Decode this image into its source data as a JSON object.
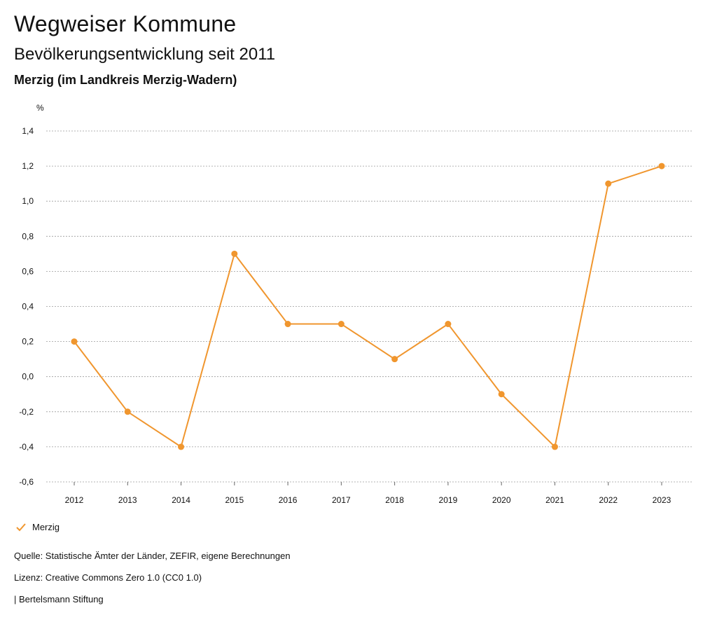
{
  "header": {
    "title": "Wegweiser Kommune",
    "subtitle": "Bevölkerungsentwicklung seit 2011",
    "region": "Merzig (im Landkreis Merzig-Wadern)"
  },
  "colors": {
    "series": "#f0962e",
    "grid": "#9a9a9a",
    "text": "#111111"
  },
  "chart_data": {
    "type": "line",
    "title": "Bevölkerungsentwicklung seit 2011",
    "unit_label": "%",
    "xlabel": "",
    "ylabel": "%",
    "categories": [
      "2012",
      "2013",
      "2014",
      "2015",
      "2016",
      "2017",
      "2018",
      "2019",
      "2020",
      "2021",
      "2022",
      "2023"
    ],
    "series": [
      {
        "name": "Merzig",
        "values": [
          0.2,
          -0.2,
          -0.4,
          0.7,
          0.3,
          0.3,
          0.1,
          0.3,
          -0.1,
          -0.4,
          1.1,
          1.2
        ]
      }
    ],
    "ylim": [
      -0.6,
      1.4
    ],
    "yticks": [
      -0.6,
      -0.4,
      -0.2,
      0.0,
      0.2,
      0.4,
      0.6,
      0.8,
      1.0,
      1.2,
      1.4
    ],
    "ytick_labels": [
      "-0,6",
      "-0,4",
      "-0,2",
      "0,0",
      "0,2",
      "0,4",
      "0,6",
      "0,8",
      "1,0",
      "1,2",
      "1,4"
    ],
    "grid": true,
    "legend_position": "bottom-left"
  },
  "legend": {
    "label": "Merzig"
  },
  "footer": {
    "source": "Quelle: Statistische Ämter der Länder, ZEFIR, eigene Berechnungen",
    "license": "Lizenz: Creative Commons Zero 1.0 (CC0 1.0)",
    "brand": "| Bertelsmann Stiftung"
  }
}
